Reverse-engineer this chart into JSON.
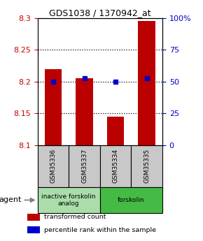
{
  "title": "GDS1038 / 1370942_at",
  "samples": [
    "GSM35336",
    "GSM35337",
    "GSM35334",
    "GSM35335"
  ],
  "bar_values": [
    8.22,
    8.205,
    8.145,
    8.295
  ],
  "percentile_values": [
    8.2,
    8.205,
    8.2,
    8.205
  ],
  "y_min": 8.1,
  "y_max": 8.3,
  "y_ticks": [
    8.1,
    8.15,
    8.2,
    8.25,
    8.3
  ],
  "y_ticks_right": [
    0,
    25,
    50,
    75,
    100
  ],
  "y_ticks_right_labels": [
    "0",
    "25",
    "50",
    "75",
    "100%"
  ],
  "bar_color": "#bb0000",
  "percentile_color": "#0000cc",
  "bar_width": 0.55,
  "groups": [
    {
      "label": "inactive forskolin\nanalog",
      "indices": [
        0,
        1
      ],
      "color": "#aaddaa"
    },
    {
      "label": "forskolin",
      "indices": [
        2,
        3
      ],
      "color": "#44bb44"
    }
  ],
  "legend_items": [
    {
      "color": "#bb0000",
      "label": "transformed count"
    },
    {
      "color": "#0000cc",
      "label": "percentile rank within the sample"
    }
  ],
  "tick_color_left": "#cc0000",
  "tick_color_right": "#0000cc",
  "background_sample_row": "#c8c8c8"
}
